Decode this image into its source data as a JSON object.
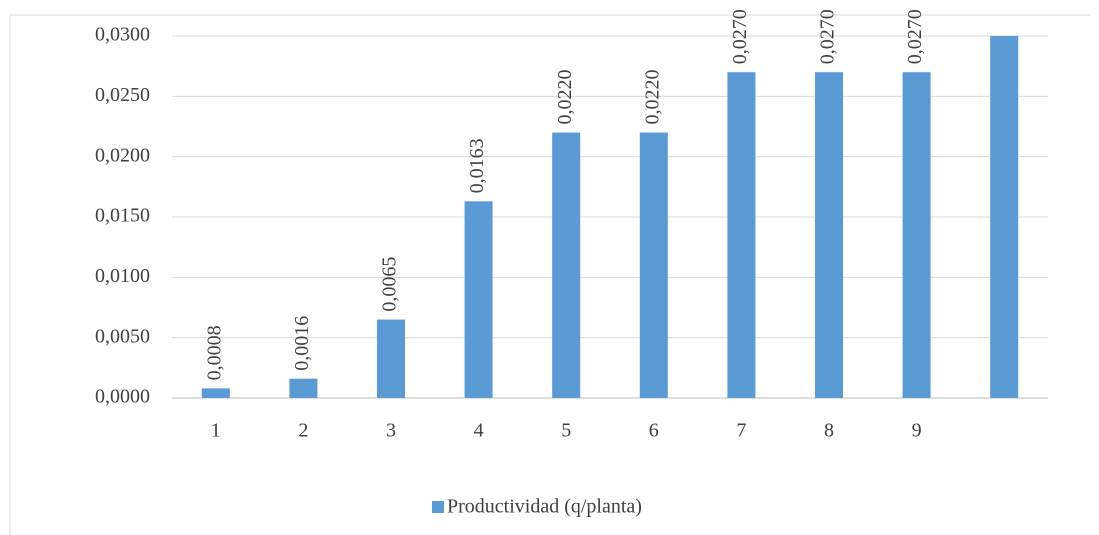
{
  "chart_data": {
    "type": "bar",
    "categories": [
      "1",
      "2",
      "3",
      "4",
      "5",
      "6",
      "7",
      "8",
      "9",
      null
    ],
    "series": [
      {
        "name": "Productividad (q/planta)",
        "color": "#5b9bd5",
        "values": [
          0.0008,
          0.0016,
          0.0065,
          0.0163,
          0.022,
          0.022,
          0.027,
          0.027,
          0.027,
          0.03
        ],
        "value_labels": [
          "0,0008",
          "0,0016",
          "0,0065",
          "0,0163",
          "0,0220",
          "0,0220",
          "0,0270",
          "0,0270",
          "0,0270",
          null
        ]
      }
    ],
    "ylim": [
      0,
      0.03
    ],
    "yticks": [
      {
        "value": 0,
        "label": "0,0000"
      },
      {
        "value": 0.005,
        "label": "0,0050"
      },
      {
        "value": 0.01,
        "label": "0,0100"
      },
      {
        "value": 0.015,
        "label": "0,0150"
      },
      {
        "value": 0.02,
        "label": "0,0200"
      },
      {
        "value": 0.025,
        "label": "0,0250"
      },
      {
        "value": 0.03,
        "label": "0,0300"
      }
    ],
    "grid": true,
    "legend": "bottom"
  }
}
